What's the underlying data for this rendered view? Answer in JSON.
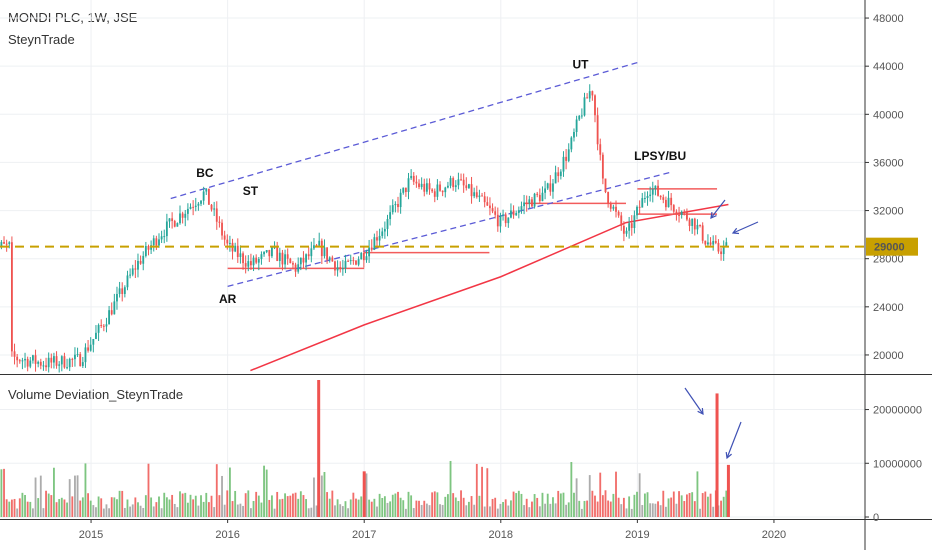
{
  "header": {
    "symbol_line": "MONDI PLC, 1W, JSE",
    "author": "SteynTrade",
    "volume_indicator": "Volume Deviation_SteynTrade"
  },
  "chart_data": [
    {
      "type": "candlestick",
      "title": "MONDI PLC, 1W, JSE",
      "x_ticks": [
        "2015",
        "2016",
        "2017",
        "2018",
        "2019",
        "2020"
      ],
      "y_ticks": [
        20000,
        24000,
        28000,
        32000,
        36000,
        40000,
        44000,
        48000
      ],
      "ylim": [
        18500,
        49500
      ],
      "xlim": [
        "2014-05",
        "2020-09"
      ],
      "current_price_label": "29000",
      "current_price": 29000,
      "price_path": [
        [
          "2014-06",
          19800
        ],
        [
          "2014-09",
          19300
        ],
        [
          "2014-12",
          19600
        ],
        [
          "2015-02",
          22500
        ],
        [
          "2015-04",
          25800
        ],
        [
          "2015-05",
          27500
        ],
        [
          "2015-07",
          30000
        ],
        [
          "2015-09",
          31800
        ],
        [
          "2015-11",
          33500
        ],
        [
          "2016-01",
          29000
        ],
        [
          "2016-03",
          27500
        ],
        [
          "2016-05",
          28500
        ],
        [
          "2016-07",
          27200
        ],
        [
          "2016-09",
          29000
        ],
        [
          "2016-11",
          27000
        ],
        [
          "2017-01",
          28500
        ],
        [
          "2017-03",
          31000
        ],
        [
          "2017-05",
          34500
        ],
        [
          "2017-07",
          33500
        ],
        [
          "2017-09",
          34500
        ],
        [
          "2017-11",
          33000
        ],
        [
          "2018-01",
          31000
        ],
        [
          "2018-03",
          32500
        ],
        [
          "2018-05",
          33500
        ],
        [
          "2018-07",
          37000
        ],
        [
          "2018-08",
          40000
        ],
        [
          "2018-09",
          42300
        ],
        [
          "2018-10",
          34000
        ],
        [
          "2018-12",
          29800
        ],
        [
          "2019-02",
          34000
        ],
        [
          "2019-04",
          32500
        ],
        [
          "2019-06",
          31000
        ],
        [
          "2019-07",
          29500
        ],
        [
          "2019-08",
          28700
        ],
        [
          "2019-09",
          29000
        ]
      ],
      "moving_average": [
        [
          "2016-03",
          18700
        ],
        [
          "2017-01",
          22500
        ],
        [
          "2018-01",
          26500
        ],
        [
          "2018-12",
          31000
        ],
        [
          "2019-09",
          32500
        ]
      ],
      "support_line": 29000,
      "horizontal_levels": [
        {
          "from": "2016-01",
          "to": "2017-01",
          "y": 27200
        },
        {
          "from": "2017-01",
          "to": "2017-12",
          "y": 28500
        },
        {
          "from": "2018-03",
          "to": "2018-12",
          "y": 32600
        },
        {
          "from": "2019-01",
          "to": "2019-08",
          "y": 33800
        },
        {
          "from": "2019-01",
          "to": "2019-08",
          "y": 31700
        }
      ],
      "channel_lines": [
        {
          "from": [
            "2015-08",
            33000
          ],
          "to": [
            "2019-01",
            44300
          ]
        },
        {
          "from": [
            "2016-01",
            25700
          ],
          "to": [
            "2019-04",
            35200
          ]
        }
      ],
      "annotations": [
        {
          "text": "BC",
          "x": "2015-11",
          "y": 34800
        },
        {
          "text": "ST",
          "x": "2016-03",
          "y": 33300
        },
        {
          "text": "AR",
          "x": "2016-01",
          "y": 24300
        },
        {
          "text": "UT",
          "x": "2018-08",
          "y": 43800
        },
        {
          "text": "LPSY/BU",
          "x": "2019-03",
          "y": 36200
        }
      ],
      "colors": {
        "up": "#26a69a",
        "down": "#ef5350",
        "ma": "#f23645",
        "support": "#c8a000",
        "channel": "#5b5bd6",
        "arrow": "#3f51b5"
      }
    },
    {
      "type": "bar",
      "title": "Volume Deviation_SteynTrade",
      "y_ticks": [
        0,
        10000000,
        20000000
      ],
      "ylim": [
        0,
        25500000
      ],
      "typical_volume": 2500000,
      "spikes": [
        {
          "x": "2016-09",
          "value": 25500000,
          "color": "#ef5350"
        },
        {
          "x": "2017-01",
          "value": 8500000,
          "color": "#ef5350"
        },
        {
          "x": "2019-08",
          "value": 23000000,
          "color": "#ef5350"
        },
        {
          "x": "2019-09",
          "value": 9700000,
          "color": "#ef5350"
        }
      ],
      "colors": {
        "up": "#66bb6a",
        "down": "#ef5350",
        "neutral": "#9e9e9e"
      }
    }
  ]
}
